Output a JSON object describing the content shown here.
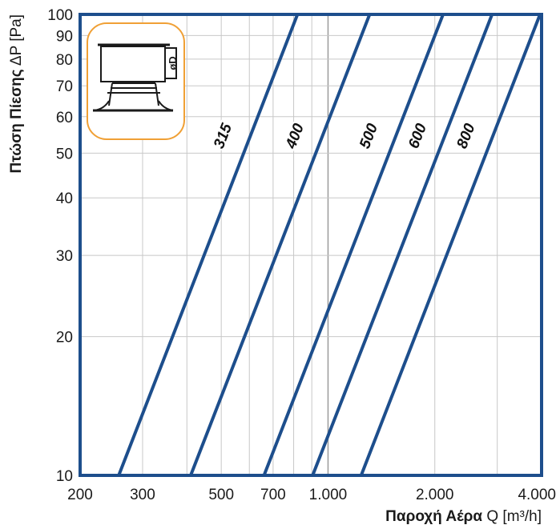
{
  "chart_data": {
    "type": "line",
    "xscale": "log",
    "yscale": "log",
    "xlim": [
      200,
      4000
    ],
    "ylim": [
      10,
      100
    ],
    "grid": true,
    "xlabel_bold": "Παροχή Αέρα",
    "xlabel_unit": " Q [m³/h]",
    "ylabel_bold": "Πτώση Πίεσης",
    "ylabel_unit": " ΔP [Pa]",
    "x_ticks": [
      {
        "value": 200,
        "label": "200"
      },
      {
        "value": 300,
        "label": "300"
      },
      {
        "value": 500,
        "label": "500"
      },
      {
        "value": 700,
        "label": "700"
      },
      {
        "value": 1000,
        "label": "1.000"
      },
      {
        "value": 2000,
        "label": "2.000"
      },
      {
        "value": 4000,
        "label": "4.000"
      }
    ],
    "y_ticks": [
      {
        "value": 10,
        "label": "10"
      },
      {
        "value": 20,
        "label": "20"
      },
      {
        "value": 30,
        "label": "30"
      },
      {
        "value": 40,
        "label": "40"
      },
      {
        "value": 50,
        "label": "50"
      },
      {
        "value": 60,
        "label": "60"
      },
      {
        "value": 70,
        "label": "70"
      },
      {
        "value": 80,
        "label": "80"
      },
      {
        "value": 90,
        "label": "90"
      },
      {
        "value": 100,
        "label": "100"
      }
    ],
    "series": [
      {
        "name": "315",
        "points": [
          [
            257,
            10
          ],
          [
            820,
            100
          ]
        ],
        "label_at": [
          520,
          54
        ]
      },
      {
        "name": "400",
        "points": [
          [
            410,
            10
          ],
          [
            1310,
            100
          ]
        ],
        "label_at": [
          830,
          54
        ]
      },
      {
        "name": "500",
        "points": [
          [
            660,
            10
          ],
          [
            2110,
            100
          ]
        ],
        "label_at": [
          1340,
          54
        ]
      },
      {
        "name": "600",
        "points": [
          [
            905,
            10
          ],
          [
            2900,
            100
          ]
        ],
        "label_at": [
          1840,
          54
        ]
      },
      {
        "name": "800",
        "points": [
          [
            1240,
            10
          ],
          [
            3960,
            100
          ]
        ],
        "label_at": [
          2520,
          54
        ]
      }
    ],
    "line_color": "#1d4e8c",
    "frame_color": "#1d4e8c"
  },
  "inset": {
    "label": "øD",
    "border_color": "#f0a035"
  }
}
